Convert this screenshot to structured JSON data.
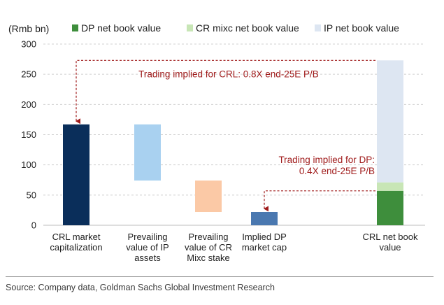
{
  "chart_data": {
    "type": "bar",
    "ylabel": "(Rmb bn)",
    "ylim": [
      0,
      300
    ],
    "yticks": [
      0,
      50,
      100,
      150,
      200,
      250,
      300
    ],
    "grid": true,
    "legend_position": "top",
    "legend": [
      {
        "name": "DP net book value",
        "color": "#3e8e3c"
      },
      {
        "name": "CR mixc net book value",
        "color": "#c8e6b6"
      },
      {
        "name": "IP net book value",
        "color": "#dde6f2"
      }
    ],
    "categories": [
      [
        "CRL market",
        "capitalization"
      ],
      [
        "Prevailing",
        "value of IP",
        "assets"
      ],
      [
        "Prevailing",
        "value of CR",
        "Mixc stake"
      ],
      [
        "Implied DP",
        "market cap"
      ],
      [
        "CRL net book",
        "value"
      ]
    ],
    "floating_bars": [
      {
        "category": 0,
        "bottom": 0,
        "top": 167,
        "color": "#0a2e5a"
      },
      {
        "category": 1,
        "bottom": 74,
        "top": 167,
        "color": "#a9d1f0"
      },
      {
        "category": 2,
        "bottom": 22,
        "top": 74,
        "color": "#fbc9a6"
      },
      {
        "category": 3,
        "bottom": 0,
        "top": 22,
        "color": "#4a78b0"
      }
    ],
    "stacked_bar": {
      "category": 4,
      "segments": [
        {
          "series": "DP net book value",
          "value": 57,
          "color": "#3e8e3c"
        },
        {
          "series": "CR mixc net book value",
          "value": 14,
          "color": "#c8e6b6"
        },
        {
          "series": "IP net book value",
          "value": 202,
          "color": "#dde6f2"
        }
      ]
    },
    "annotations": [
      {
        "lines": [
          "Trading implied for CRL: 0.8X end-25E P/B"
        ],
        "from_category": 4,
        "from_value": 273,
        "to_category": 0,
        "to_value": 170,
        "color": "#a01c1c"
      },
      {
        "lines": [
          "Trading implied for DP:",
          "0.4X end-25E P/B"
        ],
        "from_category": 4,
        "from_value": 57,
        "to_category": 3,
        "to_value": 25,
        "color": "#a01c1c"
      }
    ]
  },
  "source": "Source: Company data, Goldman Sachs Global Investment Research"
}
